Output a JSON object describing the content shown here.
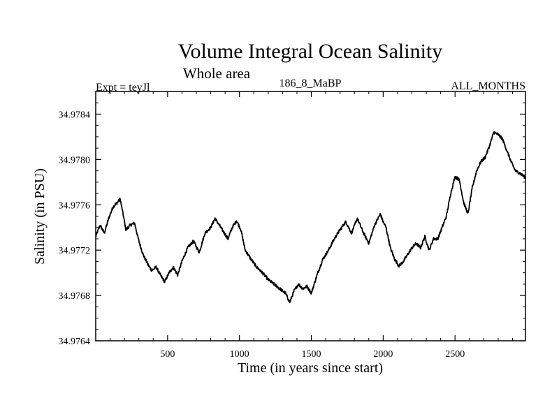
{
  "chart_data": {
    "type": "line",
    "title": "Volume Integral Ocean Salinity",
    "subtitle": "Whole area",
    "left_label": "Expt = teyJl",
    "center_label": "186_8_MaBP",
    "right_label": "ALL_MONTHS",
    "xlabel": "Time (in years since start)",
    "ylabel": "Salinity (in PSU)",
    "xlim": [
      0,
      2990
    ],
    "ylim": [
      34.9764,
      34.9786
    ],
    "x_ticks": [
      500,
      1000,
      1500,
      2000,
      2500
    ],
    "x_tick_labels": [
      "500",
      "1000",
      "1500",
      "2000",
      "2500"
    ],
    "y_ticks": [
      34.9764,
      34.9768,
      34.9772,
      34.9776,
      34.978,
      34.9784
    ],
    "y_tick_labels": [
      "34.9764",
      "34.9768",
      "34.9772",
      "34.9776",
      "34.9780",
      "34.9784"
    ],
    "series": [
      {
        "name": "salinity",
        "x": [
          0,
          30,
          60,
          90,
          120,
          150,
          170,
          190,
          210,
          240,
          270,
          300,
          330,
          360,
          390,
          420,
          450,
          480,
          510,
          540,
          570,
          600,
          640,
          680,
          720,
          760,
          800,
          830,
          860,
          890,
          920,
          950,
          980,
          1010,
          1040,
          1080,
          1120,
          1160,
          1200,
          1240,
          1280,
          1320,
          1350,
          1380,
          1410,
          1440,
          1470,
          1500,
          1540,
          1580,
          1620,
          1660,
          1700,
          1740,
          1780,
          1820,
          1860,
          1900,
          1940,
          1980,
          2000,
          2020,
          2050,
          2080,
          2110,
          2140,
          2170,
          2200,
          2230,
          2260,
          2290,
          2320,
          2350,
          2380,
          2410,
          2440,
          2470,
          2500,
          2530,
          2560,
          2590,
          2620,
          2650,
          2680,
          2710,
          2740,
          2770,
          2800,
          2830,
          2860,
          2890,
          2920,
          2950,
          2990
        ],
        "values": [
          34.97732,
          34.97742,
          34.97735,
          34.97748,
          34.97758,
          34.97762,
          34.97765,
          34.97752,
          34.97738,
          34.97742,
          34.97744,
          34.97728,
          34.97716,
          34.97708,
          34.97702,
          34.97705,
          34.97698,
          34.97692,
          34.977,
          34.97705,
          34.97698,
          34.9771,
          34.97722,
          34.97728,
          34.97718,
          34.97735,
          34.9774,
          34.97748,
          34.97742,
          34.97736,
          34.9773,
          34.9774,
          34.97746,
          34.97738,
          34.9772,
          34.97712,
          34.97705,
          34.977,
          34.97694,
          34.9769,
          34.97686,
          34.97682,
          34.97674,
          34.97684,
          34.9769,
          34.97686,
          34.97688,
          34.97682,
          34.97698,
          34.97712,
          34.9772,
          34.9773,
          34.97738,
          34.97745,
          34.97735,
          34.97748,
          34.97736,
          34.97726,
          34.97742,
          34.97752,
          34.97745,
          34.9774,
          34.97722,
          34.97712,
          34.97706,
          34.9771,
          34.97716,
          34.97722,
          34.97726,
          34.97722,
          34.97732,
          34.9772,
          34.9773,
          34.9773,
          34.9774,
          34.9775,
          34.9777,
          34.97785,
          34.97782,
          34.97762,
          34.97752,
          34.97775,
          34.9779,
          34.97798,
          34.97802,
          34.97812,
          34.97824,
          34.97822,
          34.97818,
          34.97808,
          34.97798,
          34.9779,
          34.97788,
          34.97784
        ]
      }
    ]
  }
}
